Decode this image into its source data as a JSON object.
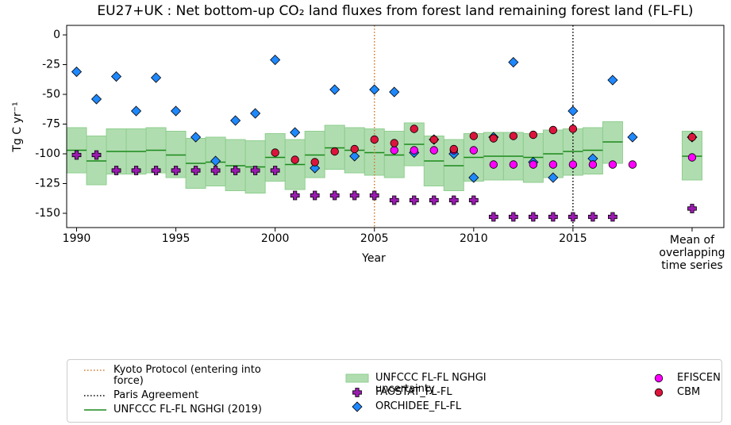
{
  "chart_data": {
    "type": "scatter",
    "title": "EU27+UK : Net bottom-up CO₂ land fluxes from forest land remaining forest land (FL-FL)",
    "xlabel": "Year",
    "ylabel": "Tg C yr⁻¹",
    "xlim": [
      1989.5,
      2022.6
    ],
    "ylim": [
      -162,
      8
    ],
    "xticks": [
      1990,
      1995,
      2000,
      2005,
      2010,
      2015,
      {
        "value": 2021,
        "label": "Mean of overlapping time series"
      }
    ],
    "yticks": [
      0,
      -25,
      -50,
      -75,
      -100,
      -125,
      -150
    ],
    "x": [
      1990,
      1991,
      1992,
      1993,
      1994,
      1995,
      1996,
      1997,
      1998,
      1999,
      2000,
      2001,
      2002,
      2003,
      2004,
      2005,
      2006,
      2007,
      2008,
      2009,
      2010,
      2011,
      2012,
      2013,
      2014,
      2015,
      2016,
      2017,
      2018,
      2021
    ],
    "vlines": [
      {
        "name": "Kyoto Protocol (entering into force)",
        "x": 2005,
        "color": "#d2782a"
      },
      {
        "name": "Paris Agreement",
        "x": 2015,
        "color": "#000000"
      }
    ],
    "band": {
      "name": "UNFCCC FL-FL NGHGI uncertainty",
      "color": "#8fce8f",
      "high": [
        -78,
        -85,
        -79,
        -79,
        -78,
        -81,
        -87,
        -86,
        -88,
        -89,
        -83,
        -88,
        -81,
        -76,
        -78,
        -79,
        -81,
        -74,
        -85,
        -88,
        -83,
        -82,
        -82,
        -83,
        -80,
        -79,
        -78,
        -73,
        null,
        -81
      ],
      "low": [
        -116,
        -126,
        -117,
        -117,
        -116,
        -120,
        -129,
        -127,
        -131,
        -133,
        -123,
        -130,
        -120,
        -113,
        -116,
        -118,
        -120,
        -110,
        -127,
        -131,
        -123,
        -122,
        -122,
        -124,
        -120,
        -118,
        -117,
        -108,
        null,
        -122
      ]
    },
    "line": {
      "name": "UNFCCC FL-FL NGHGI (2019)",
      "color": "#1a8a1a",
      "values": [
        -97,
        -106,
        -98,
        -98,
        -97,
        -101,
        -108,
        -107,
        -110,
        -111,
        -103,
        -109,
        -101,
        -95,
        -97,
        -99,
        -101,
        -92,
        -106,
        -110,
        -103,
        -102,
        -102,
        -103,
        -100,
        -98,
        -97,
        -90,
        null,
        -102
      ]
    },
    "series": [
      {
        "name": "FAOSTAT_FL-FL",
        "marker": "plus",
        "color": "#9a1ab0",
        "values": [
          -101,
          -101,
          -114,
          -114,
          -114,
          -114,
          -114,
          -114,
          -114,
          -114,
          -114,
          -135,
          -135,
          -135,
          -135,
          -135,
          -139,
          -139,
          -139,
          -139,
          -139,
          -153,
          -153,
          -153,
          -153,
          -153,
          -153,
          -153,
          null,
          -146
        ]
      },
      {
        "name": "ORCHIDEE_FL-FL",
        "marker": "diamond",
        "color": "#1e88ff",
        "values": [
          -31,
          -54,
          -35,
          -64,
          -36,
          -64,
          -86,
          -106,
          -72,
          -66,
          -21,
          -82,
          -112,
          -46,
          -102,
          -46,
          -48,
          -99,
          -88,
          -100,
          -120,
          -86,
          -23,
          -107,
          -120,
          -64,
          -104,
          -38,
          -86,
          -86
        ]
      },
      {
        "name": "EFISCEN",
        "marker": "circle",
        "color": "#ff00ff",
        "values": [
          null,
          null,
          null,
          null,
          null,
          null,
          null,
          null,
          null,
          null,
          null,
          null,
          null,
          null,
          null,
          null,
          -97,
          -97,
          -97,
          -97,
          -97,
          -109,
          -109,
          -109,
          -109,
          -109,
          -109,
          -109,
          -109,
          -103
        ]
      },
      {
        "name": "CBM",
        "marker": "circle",
        "color": "#dc143c",
        "values": [
          null,
          null,
          null,
          null,
          null,
          null,
          null,
          null,
          null,
          null,
          -99,
          -105,
          -107,
          -98,
          -96,
          -88,
          -91,
          -79,
          -88,
          -96,
          -85,
          -87,
          -85,
          -84,
          -80,
          -79,
          null,
          null,
          null,
          -86
        ]
      }
    ]
  }
}
